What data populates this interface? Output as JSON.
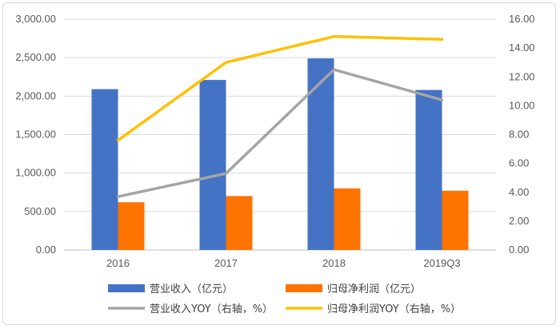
{
  "chart_data": {
    "type": "bar",
    "categories": [
      "2016",
      "2017",
      "2018",
      "2019Q3"
    ],
    "series": [
      {
        "name": "营业收入（亿元）",
        "type": "bar",
        "axis": "left",
        "color": "#4472C4",
        "values": [
          2090,
          2210,
          2490,
          2080
        ]
      },
      {
        "name": "归母净利润（亿元）",
        "type": "bar",
        "axis": "left",
        "color": "#FF7300",
        "values": [
          620,
          700,
          800,
          770
        ]
      },
      {
        "name": "营业收入YOY（右轴，%）",
        "type": "line",
        "axis": "right",
        "color": "#A5A5A5",
        "values": [
          3.7,
          5.3,
          12.5,
          10.4
        ]
      },
      {
        "name": "归母净利润YOY（右轴，%）",
        "type": "line",
        "axis": "right",
        "color": "#FFC000",
        "values": [
          7.6,
          13.0,
          14.8,
          14.6
        ]
      }
    ],
    "y_left": {
      "min": 0,
      "max": 3000,
      "step": 500,
      "ticks": [
        "0.00",
        "500.00",
        "1,000.00",
        "1,500.00",
        "2,000.00",
        "2,500.00",
        "3,000.00"
      ]
    },
    "y_right": {
      "min": 0,
      "max": 16,
      "step": 2,
      "ticks": [
        "0.00",
        "2.00",
        "4.00",
        "6.00",
        "8.00",
        "10.00",
        "12.00",
        "14.00",
        "16.00"
      ]
    },
    "grid": true,
    "legend_position": "bottom"
  }
}
